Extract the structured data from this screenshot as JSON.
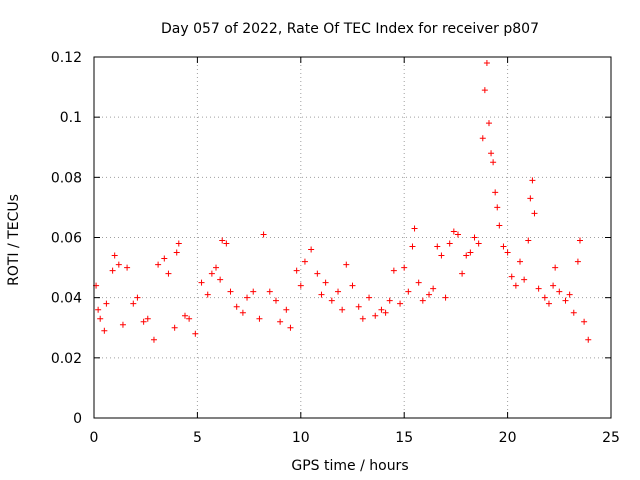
{
  "chart_data": {
    "type": "scatter",
    "title": "Day 057 of 2022, Rate Of TEC Index for receiver p807",
    "xlabel": "GPS time / hours",
    "ylabel": "ROTI / TECUs",
    "xlim": [
      0,
      25
    ],
    "ylim": [
      0,
      0.12
    ],
    "xticks": [
      0,
      5,
      10,
      15,
      20,
      25
    ],
    "xtick_labels": [
      "0",
      "5",
      "10",
      "15",
      "20",
      "25"
    ],
    "yticks": [
      0,
      0.02,
      0.04,
      0.06,
      0.08,
      0.1,
      0.12
    ],
    "ytick_labels": [
      "0",
      "0.02",
      "0.04",
      "0.06",
      "0.08",
      "0.1",
      "0.12"
    ],
    "grid": true,
    "marker": "plus",
    "color": "#ff0000",
    "series": [
      {
        "points": [
          [
            0.1,
            0.044
          ],
          [
            0.2,
            0.036
          ],
          [
            0.3,
            0.033
          ],
          [
            0.5,
            0.029
          ],
          [
            0.6,
            0.038
          ],
          [
            0.9,
            0.049
          ],
          [
            1.0,
            0.054
          ],
          [
            1.2,
            0.051
          ],
          [
            1.4,
            0.031
          ],
          [
            1.6,
            0.05
          ],
          [
            1.9,
            0.038
          ],
          [
            2.1,
            0.04
          ],
          [
            2.4,
            0.032
          ],
          [
            2.6,
            0.033
          ],
          [
            2.9,
            0.026
          ],
          [
            3.1,
            0.051
          ],
          [
            3.4,
            0.053
          ],
          [
            3.6,
            0.048
          ],
          [
            3.9,
            0.03
          ],
          [
            4.0,
            0.055
          ],
          [
            4.1,
            0.058
          ],
          [
            4.4,
            0.034
          ],
          [
            4.6,
            0.033
          ],
          [
            4.9,
            0.028
          ],
          [
            5.2,
            0.045
          ],
          [
            5.5,
            0.041
          ],
          [
            5.7,
            0.048
          ],
          [
            5.9,
            0.05
          ],
          [
            6.1,
            0.046
          ],
          [
            6.2,
            0.059
          ],
          [
            6.4,
            0.058
          ],
          [
            6.6,
            0.042
          ],
          [
            6.9,
            0.037
          ],
          [
            7.2,
            0.035
          ],
          [
            7.4,
            0.04
          ],
          [
            7.7,
            0.042
          ],
          [
            8.0,
            0.033
          ],
          [
            8.2,
            0.061
          ],
          [
            8.5,
            0.042
          ],
          [
            8.8,
            0.039
          ],
          [
            9.0,
            0.032
          ],
          [
            9.3,
            0.036
          ],
          [
            9.5,
            0.03
          ],
          [
            9.8,
            0.049
          ],
          [
            10.0,
            0.044
          ],
          [
            10.2,
            0.052
          ],
          [
            10.5,
            0.056
          ],
          [
            10.8,
            0.048
          ],
          [
            11.0,
            0.041
          ],
          [
            11.2,
            0.045
          ],
          [
            11.5,
            0.039
          ],
          [
            11.8,
            0.042
          ],
          [
            12.0,
            0.036
          ],
          [
            12.2,
            0.051
          ],
          [
            12.5,
            0.044
          ],
          [
            12.8,
            0.037
          ],
          [
            13.0,
            0.033
          ],
          [
            13.3,
            0.04
          ],
          [
            13.6,
            0.034
          ],
          [
            13.9,
            0.036
          ],
          [
            14.1,
            0.035
          ],
          [
            14.3,
            0.039
          ],
          [
            14.5,
            0.049
          ],
          [
            14.8,
            0.038
          ],
          [
            15.0,
            0.05
          ],
          [
            15.2,
            0.042
          ],
          [
            15.4,
            0.057
          ],
          [
            15.5,
            0.063
          ],
          [
            15.7,
            0.045
          ],
          [
            15.9,
            0.039
          ],
          [
            16.2,
            0.041
          ],
          [
            16.4,
            0.043
          ],
          [
            16.6,
            0.057
          ],
          [
            16.8,
            0.054
          ],
          [
            17.0,
            0.04
          ],
          [
            17.2,
            0.058
          ],
          [
            17.4,
            0.062
          ],
          [
            17.6,
            0.061
          ],
          [
            17.8,
            0.048
          ],
          [
            18.0,
            0.054
          ],
          [
            18.2,
            0.055
          ],
          [
            18.4,
            0.06
          ],
          [
            18.6,
            0.058
          ],
          [
            18.8,
            0.093
          ],
          [
            18.9,
            0.109
          ],
          [
            19.0,
            0.118
          ],
          [
            19.1,
            0.098
          ],
          [
            19.2,
            0.088
          ],
          [
            19.3,
            0.085
          ],
          [
            19.4,
            0.075
          ],
          [
            19.5,
            0.07
          ],
          [
            19.6,
            0.064
          ],
          [
            19.8,
            0.057
          ],
          [
            20.0,
            0.055
          ],
          [
            20.2,
            0.047
          ],
          [
            20.4,
            0.044
          ],
          [
            20.6,
            0.052
          ],
          [
            20.8,
            0.046
          ],
          [
            21.0,
            0.059
          ],
          [
            21.1,
            0.073
          ],
          [
            21.2,
            0.079
          ],
          [
            21.3,
            0.068
          ],
          [
            21.5,
            0.043
          ],
          [
            21.8,
            0.04
          ],
          [
            22.0,
            0.038
          ],
          [
            22.2,
            0.044
          ],
          [
            22.3,
            0.05
          ],
          [
            22.5,
            0.042
          ],
          [
            22.8,
            0.039
          ],
          [
            23.0,
            0.041
          ],
          [
            23.2,
            0.035
          ],
          [
            23.4,
            0.052
          ],
          [
            23.5,
            0.059
          ],
          [
            23.7,
            0.032
          ],
          [
            23.9,
            0.026
          ]
        ]
      }
    ]
  }
}
